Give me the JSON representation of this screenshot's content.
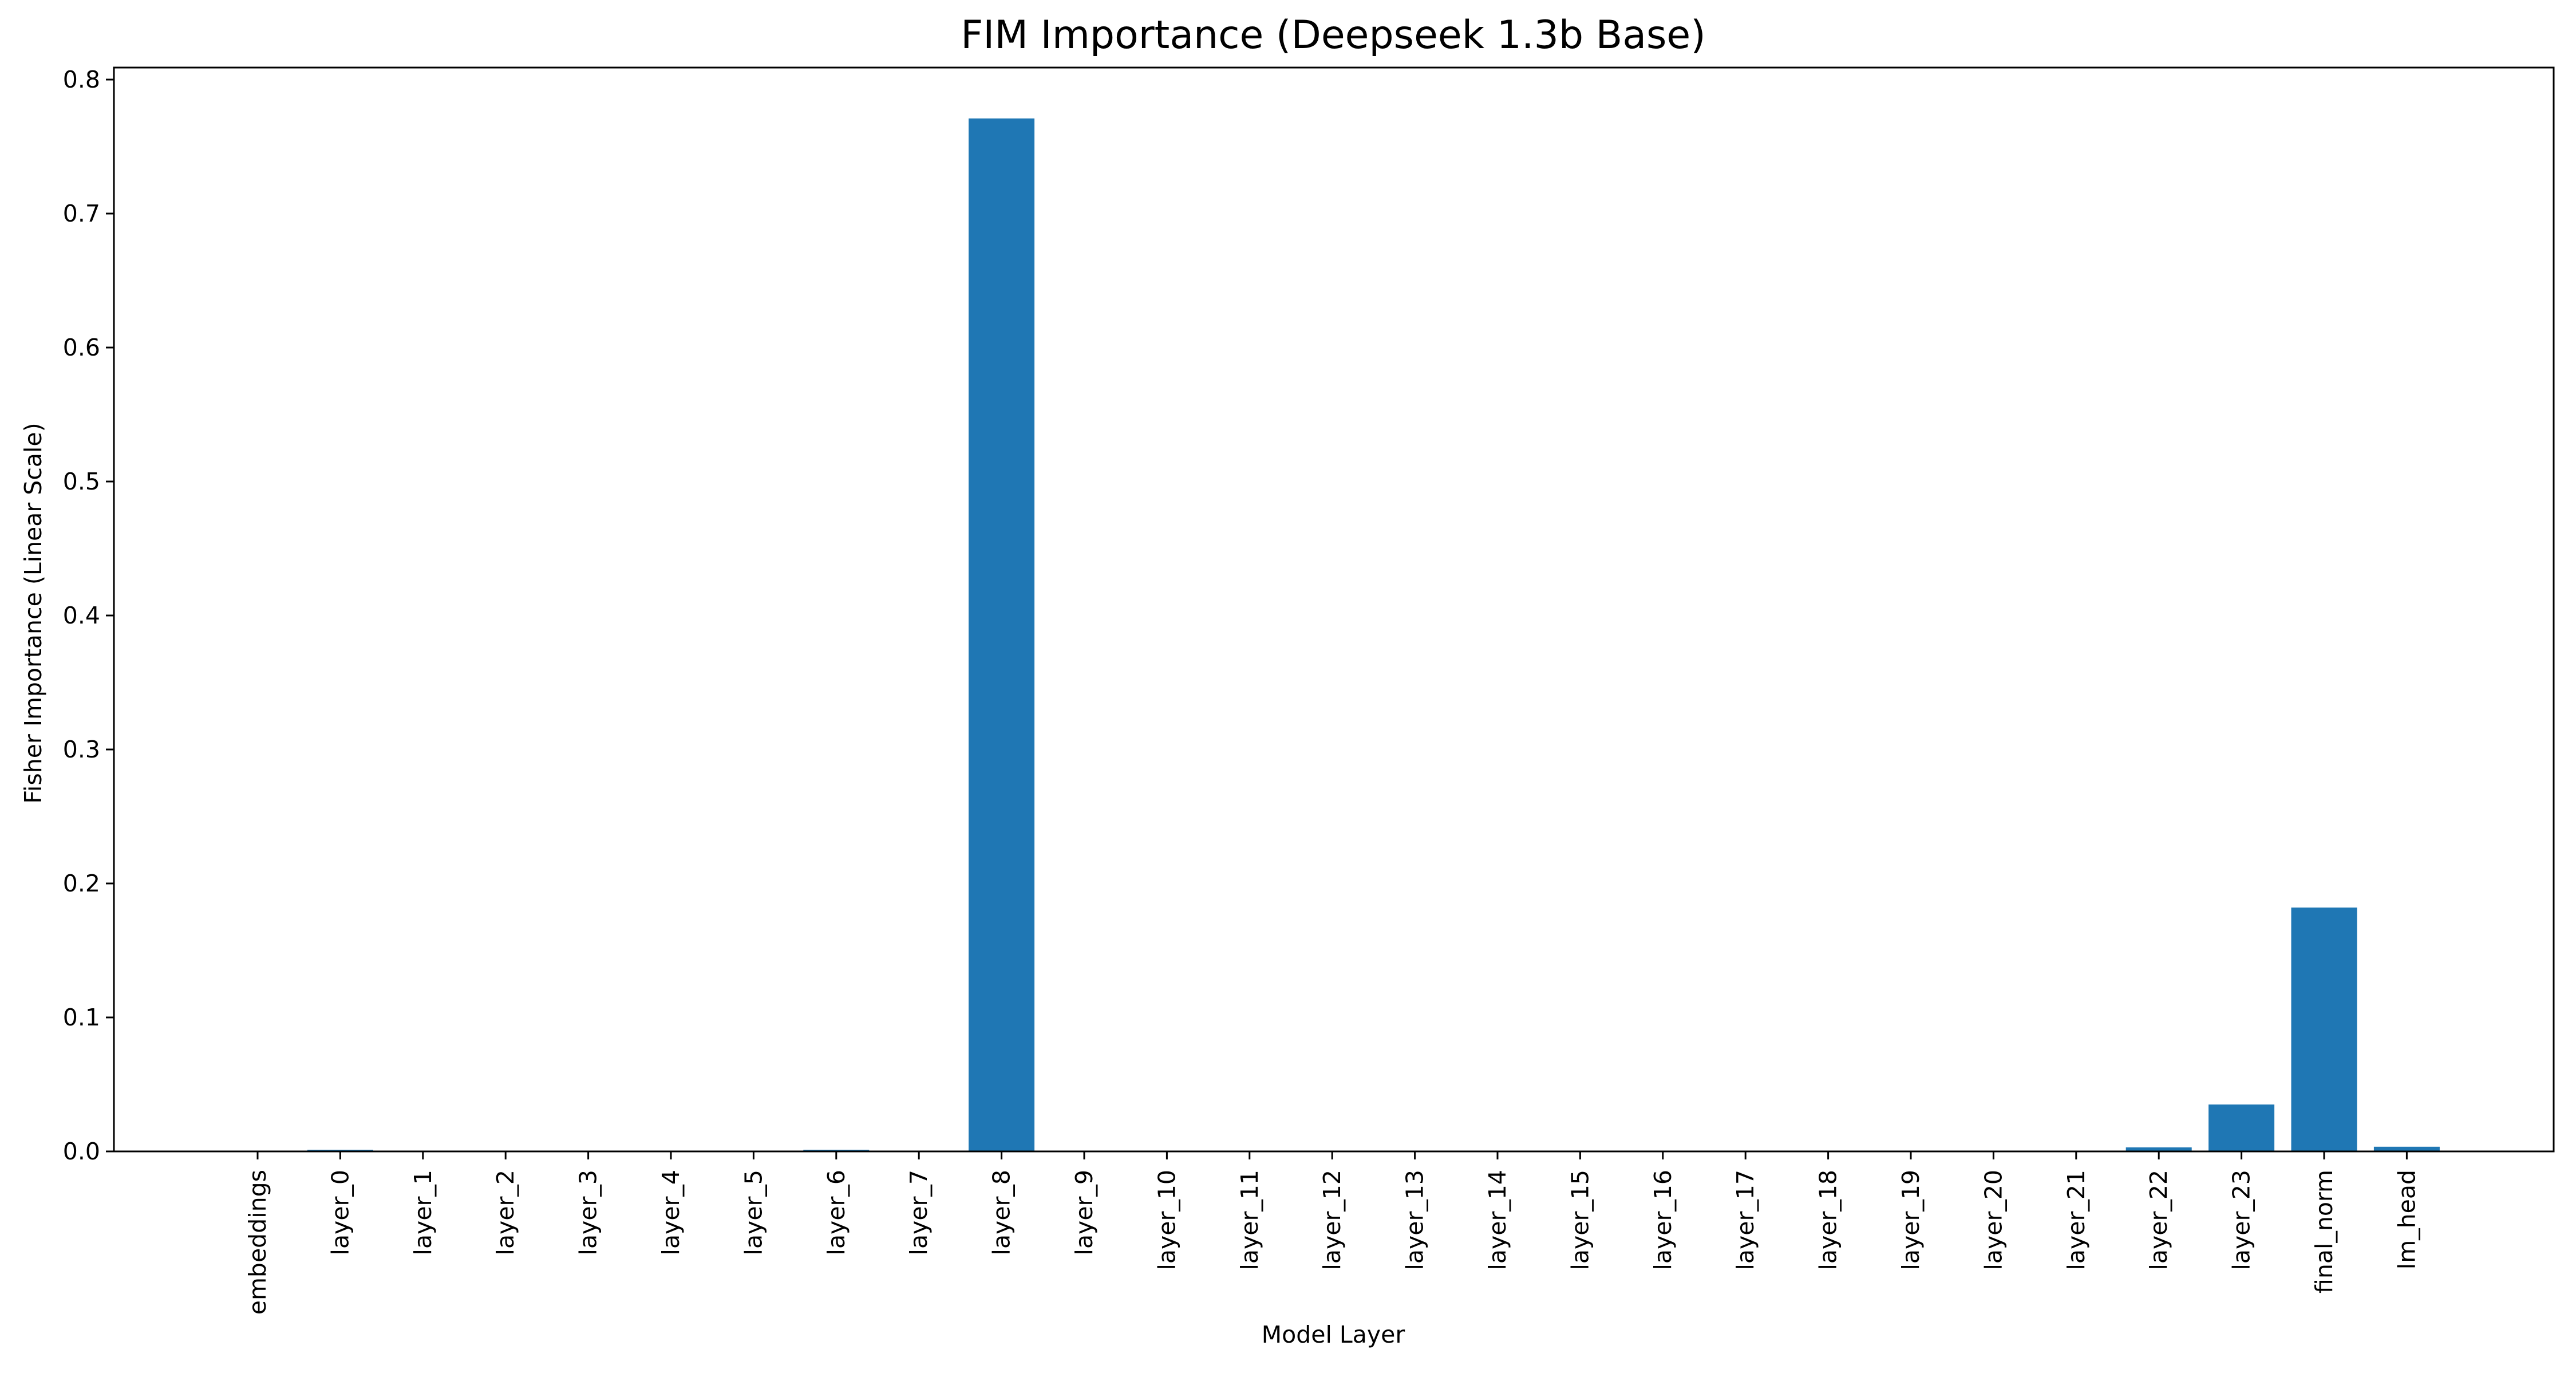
{
  "chart_data": {
    "type": "bar",
    "title": "FIM Importance (Deepseek 1.3b Base)",
    "xlabel": "Model Layer",
    "ylabel": "Fisher Importance (Linear Scale)",
    "ylim": [
      0,
      0.8
    ],
    "yticks": [
      0.0,
      0.1,
      0.2,
      0.3,
      0.4,
      0.5,
      0.6,
      0.7,
      0.8
    ],
    "ytick_labels": [
      "0.0",
      "0.1",
      "0.2",
      "0.3",
      "0.4",
      "0.5",
      "0.6",
      "0.7",
      "0.8"
    ],
    "grid": false,
    "legend": "none",
    "bar_color": "#1f77b4",
    "categories": [
      "embeddings",
      "layer_0",
      "layer_1",
      "layer_2",
      "layer_3",
      "layer_4",
      "layer_5",
      "layer_6",
      "layer_7",
      "layer_8",
      "layer_9",
      "layer_10",
      "layer_11",
      "layer_12",
      "layer_13",
      "layer_14",
      "layer_15",
      "layer_16",
      "layer_17",
      "layer_18",
      "layer_19",
      "layer_20",
      "layer_21",
      "layer_22",
      "layer_23",
      "final_norm",
      "lm_head"
    ],
    "values": [
      0.0,
      0.0012,
      0.0003,
      0.0002,
      0.0002,
      0.0002,
      0.0002,
      0.0012,
      0.0003,
      0.771,
      0.0002,
      0.0002,
      0.0002,
      0.0002,
      0.0002,
      0.0002,
      0.0002,
      0.0002,
      0.0002,
      0.0002,
      0.0002,
      0.0002,
      0.0002,
      0.003,
      0.035,
      0.182,
      0.0035
    ]
  }
}
